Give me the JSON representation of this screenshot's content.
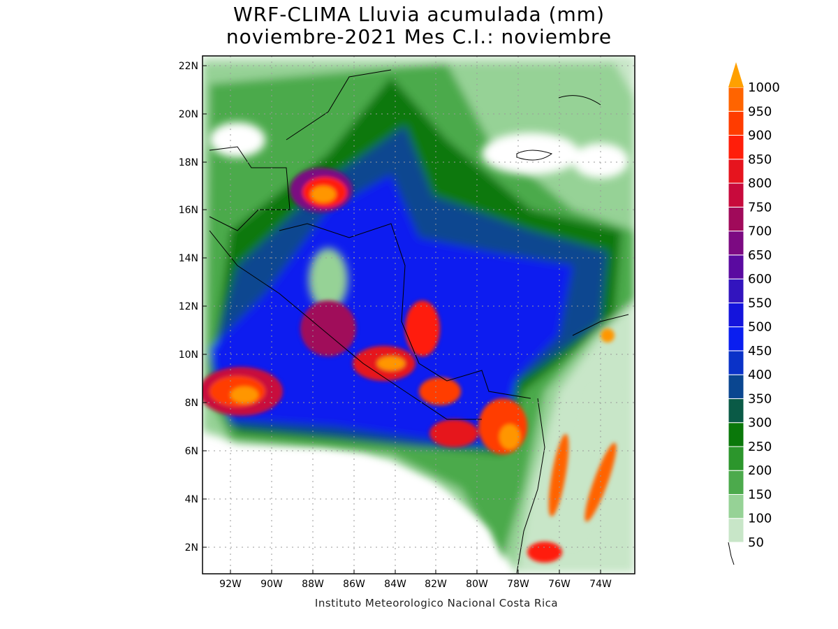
{
  "title": {
    "line1": "WRF-CLIMA Lluvia acumulada (mm)",
    "line2": "noviembre-2021 Mes C.I.: noviembre"
  },
  "credit": "Instituto Meteorologico Nacional Costa Rica",
  "axes": {
    "lon_ticks": [
      "92W",
      "90W",
      "88W",
      "86W",
      "84W",
      "82W",
      "80W",
      "78W",
      "76W",
      "74W"
    ],
    "lat_ticks": [
      "22N",
      "20N",
      "18N",
      "16N",
      "14N",
      "12N",
      "10N",
      "8N",
      "6N",
      "4N",
      "2N"
    ]
  },
  "colorbar": {
    "unit": "mm",
    "levels": [
      "50",
      "100",
      "150",
      "200",
      "250",
      "300",
      "350",
      "400",
      "450",
      "500",
      "550",
      "600",
      "650",
      "700",
      "750",
      "800",
      "850",
      "900",
      "950",
      "1000"
    ],
    "colors": [
      "#c8e6c8",
      "#96d296",
      "#4caa4c",
      "#2c962c",
      "#0a780a",
      "#0a5a46",
      "#0a4690",
      "#0a32c8",
      "#0a1ef0",
      "#1414dc",
      "#3214be",
      "#5a0aa0",
      "#7c0a82",
      "#a00a5a",
      "#c80a3c",
      "#e6141e",
      "#ff1e0a",
      "#ff3c00",
      "#ff6400",
      "#ff9600"
    ],
    "over_color": "#ffa000"
  }
}
